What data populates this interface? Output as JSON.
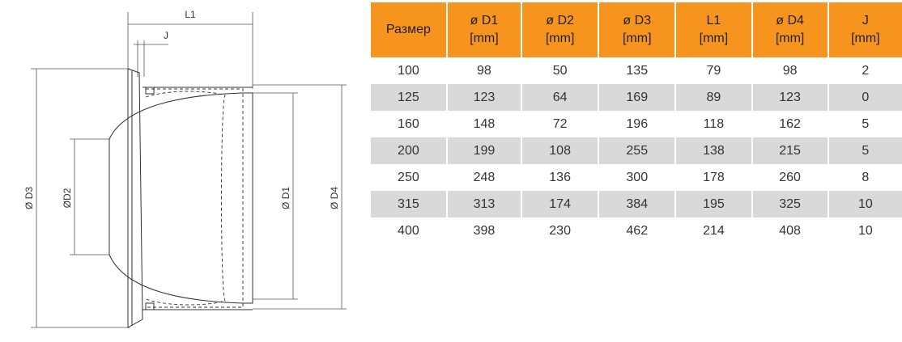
{
  "drawing": {
    "labels": {
      "l1": "L1",
      "j": "J",
      "d3": "Ø D3",
      "d2": "ØD2",
      "d1": "Ø D1",
      "d4": "Ø D4"
    }
  },
  "table": {
    "header": [
      {
        "name": "Размер"
      },
      {
        "name": "ø D1",
        "unit": "[mm]"
      },
      {
        "name": "ø D2",
        "unit": "[mm]"
      },
      {
        "name": "ø D3",
        "unit": "[mm]"
      },
      {
        "name": "L1",
        "unit": "[mm]"
      },
      {
        "name": "ø D4",
        "unit": "[mm]"
      },
      {
        "name": "J",
        "unit": "[mm]"
      }
    ],
    "rows": [
      [
        "100",
        "98",
        "50",
        "135",
        "79",
        "98",
        "2"
      ],
      [
        "125",
        "123",
        "64",
        "169",
        "89",
        "123",
        "0"
      ],
      [
        "160",
        "148",
        "72",
        "196",
        "118",
        "162",
        "5"
      ],
      [
        "200",
        "199",
        "108",
        "255",
        "138",
        "215",
        "5"
      ],
      [
        "250",
        "248",
        "136",
        "300",
        "178",
        "260",
        "8"
      ],
      [
        "315",
        "313",
        "174",
        "384",
        "195",
        "325",
        "10"
      ],
      [
        "400",
        "398",
        "230",
        "462",
        "214",
        "408",
        "10"
      ]
    ]
  }
}
